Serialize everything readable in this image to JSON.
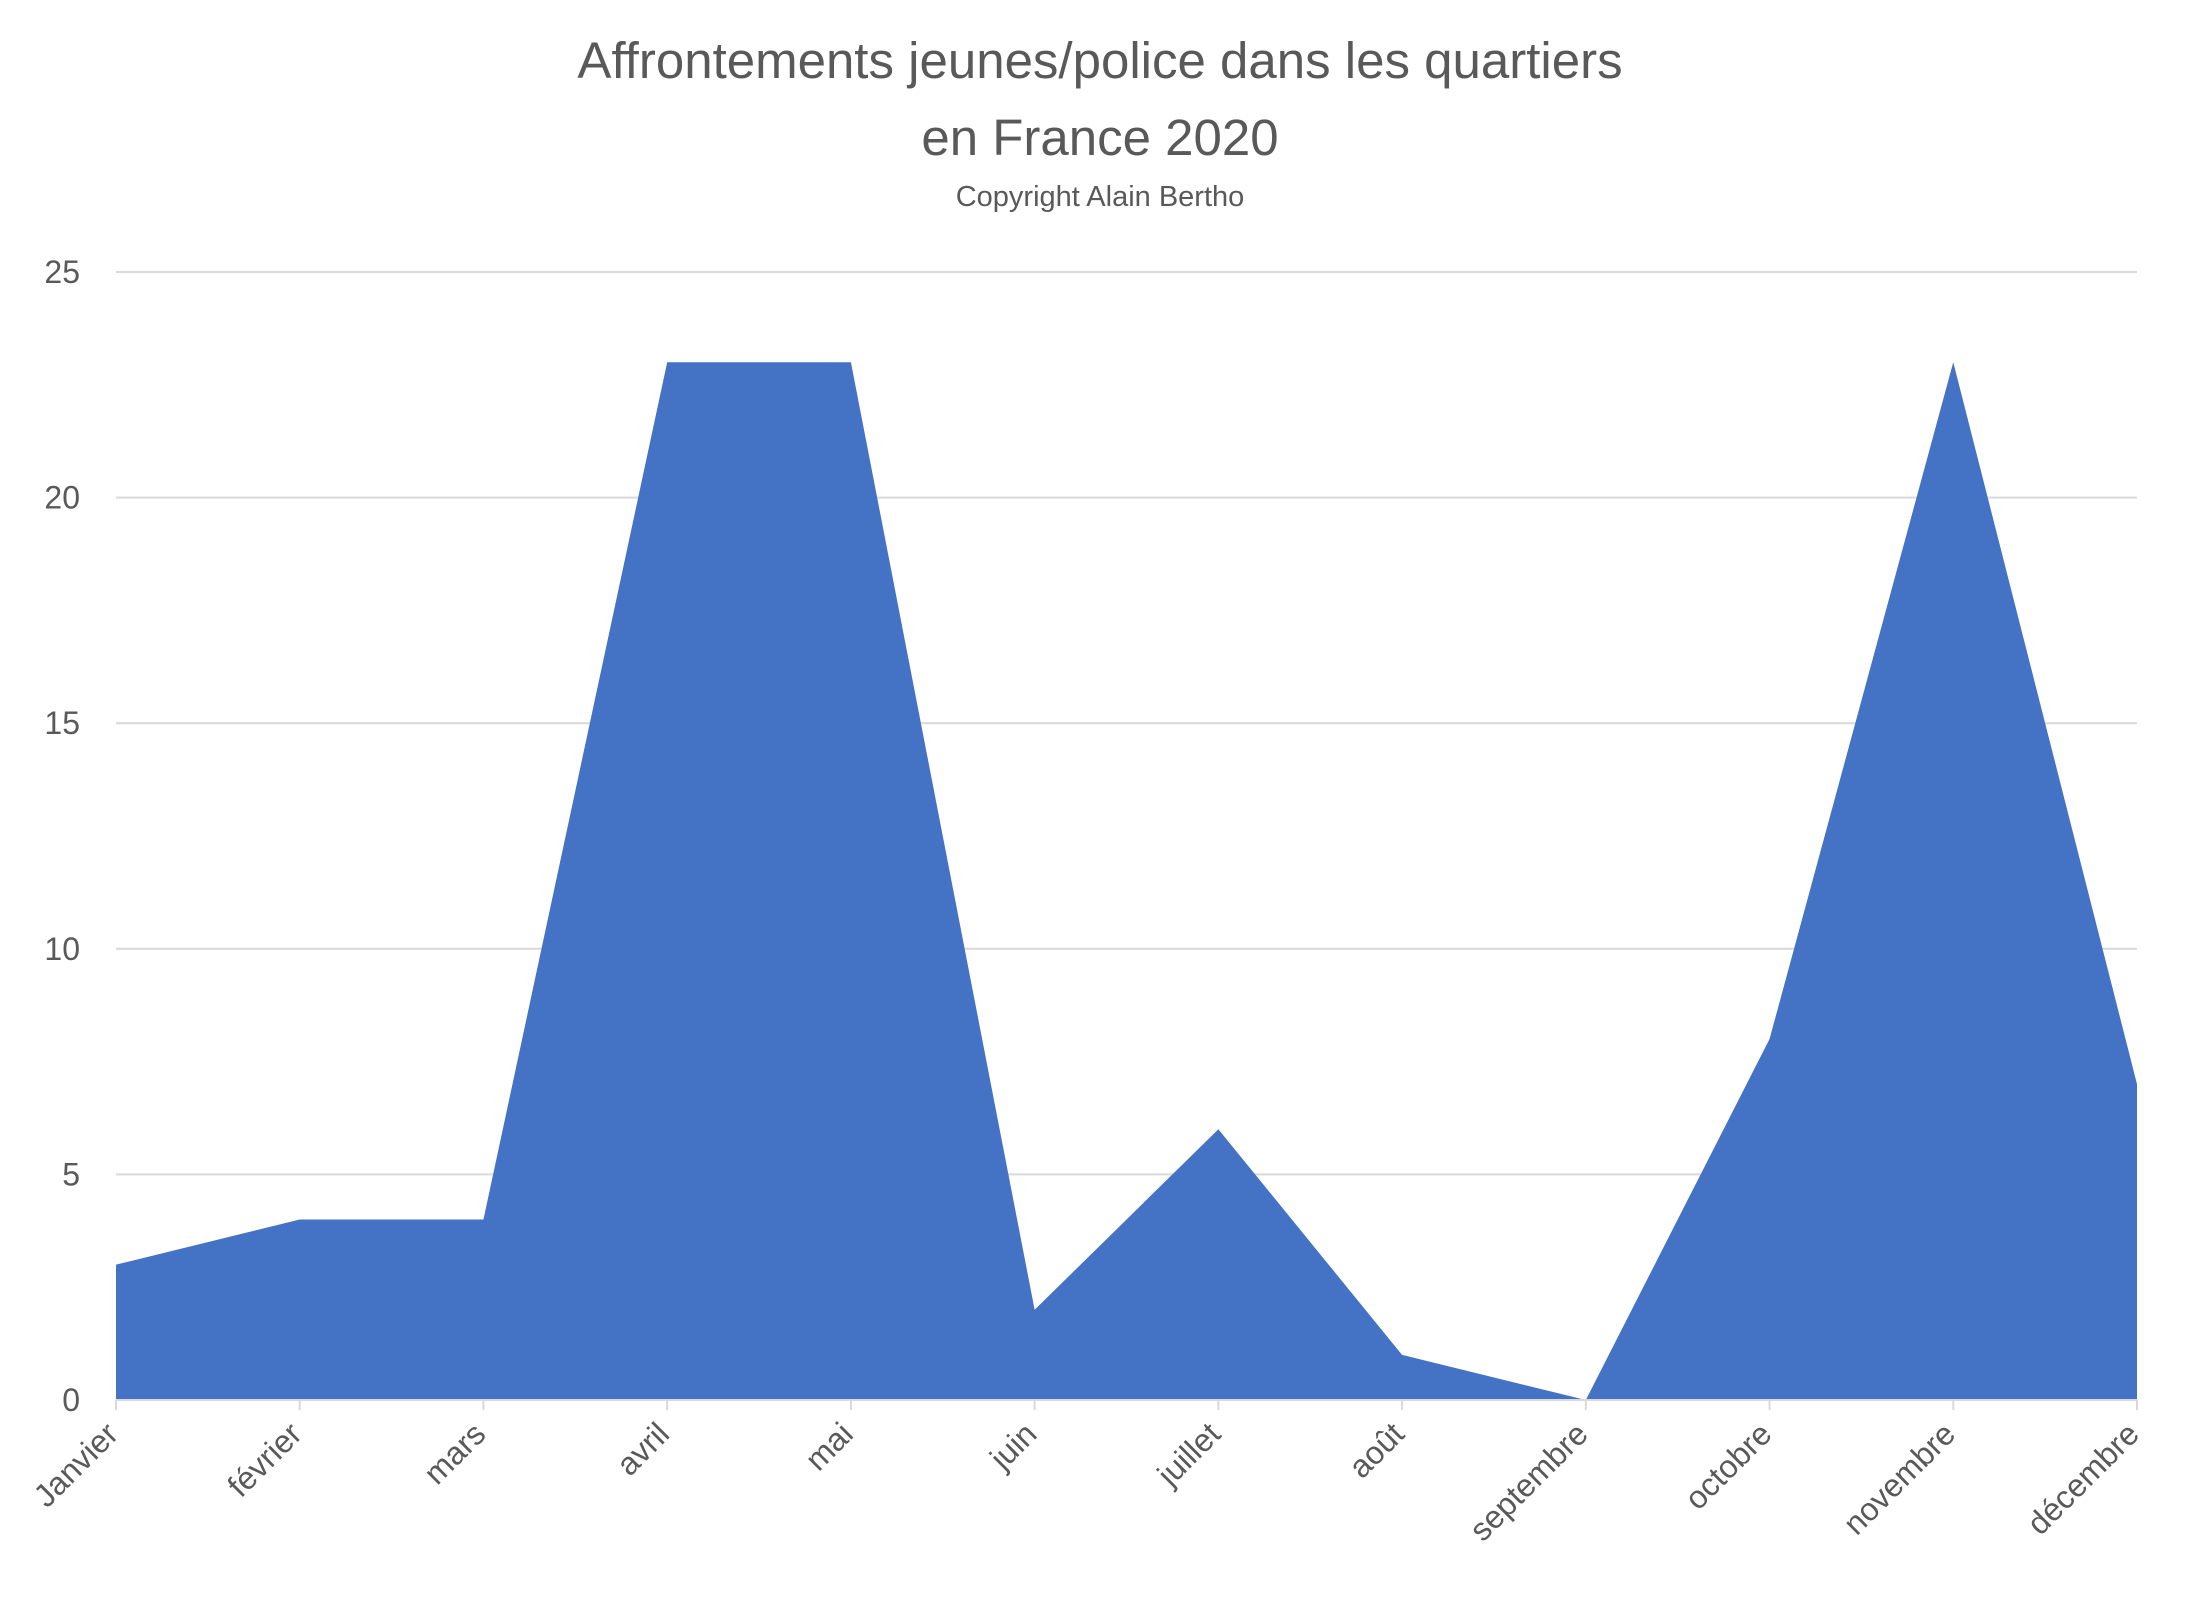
{
  "chart_data": {
    "type": "area",
    "title_lines": [
      "Affrontements jeunes/police dans les quartiers",
      "en France 2020"
    ],
    "subtitle": "Copyright Alain Bertho",
    "xlabel": "",
    "ylabel": "",
    "categories": [
      "Janvier",
      "février",
      "mars",
      "avril",
      "mai",
      "juin",
      "juillet",
      "août",
      "septembre",
      "octobre",
      "novembre",
      "décembre"
    ],
    "values": [
      3,
      4,
      4,
      23,
      23,
      2,
      6,
      1,
      0,
      8,
      23,
      7
    ],
    "ylim": [
      0,
      25
    ],
    "yticks": [
      0,
      5,
      10,
      15,
      20,
      25
    ],
    "grid": true,
    "legend": "none",
    "colors": {
      "area": "#4472C4",
      "grid": "#D9D9D9",
      "axis": "#D9D9D9",
      "text": "#595959"
    }
  }
}
